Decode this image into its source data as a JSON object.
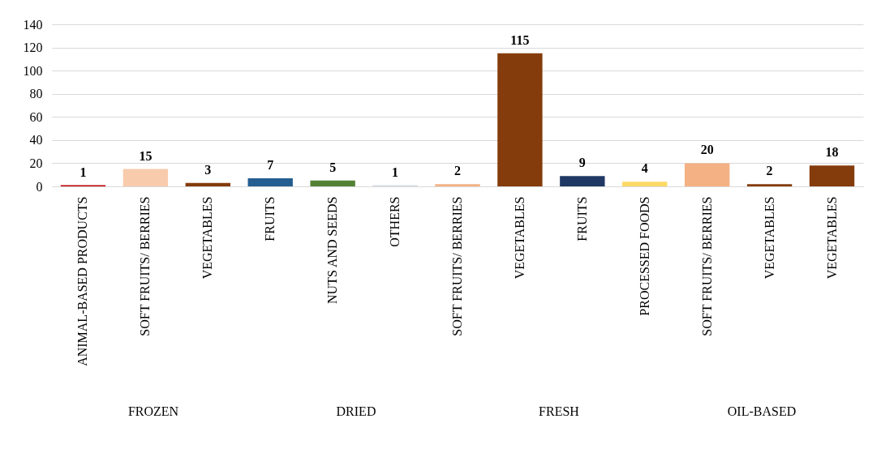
{
  "chart_data": {
    "type": "bar",
    "categories": [
      "ANIMAL-BASED PRODUCTS",
      "SOFT FRUITS/ BERRIES",
      "VEGETABLES",
      "FRUITS",
      "NUTS AND SEEDS",
      "OTHERS",
      "SOFT FRUITS/ BERRIES",
      "VEGETABLES",
      "FRUITS",
      "PROCESSED FOODS",
      "SOFT FRUITS/ BERRIES",
      "VEGETABLES",
      "VEGETABLES"
    ],
    "values": [
      1,
      15,
      3,
      7,
      5,
      1,
      2,
      115,
      9,
      4,
      20,
      2,
      18
    ],
    "colors": [
      "#c00000",
      "#f8cbad",
      "#843c0c",
      "#255e91",
      "#548235",
      "#d6dce5",
      "#f4b183",
      "#843c0c",
      "#203864",
      "#ffd966",
      "#f4b183",
      "#843c0c",
      "#843c0c"
    ],
    "ylim": [
      0,
      140
    ],
    "yticks": [
      0,
      20,
      40,
      60,
      80,
      100,
      120,
      140
    ],
    "grid": "y",
    "data_labels": true,
    "annotations": [
      "FROZEN",
      "DRIED",
      "FRESH",
      "OIL-BASED"
    ]
  }
}
